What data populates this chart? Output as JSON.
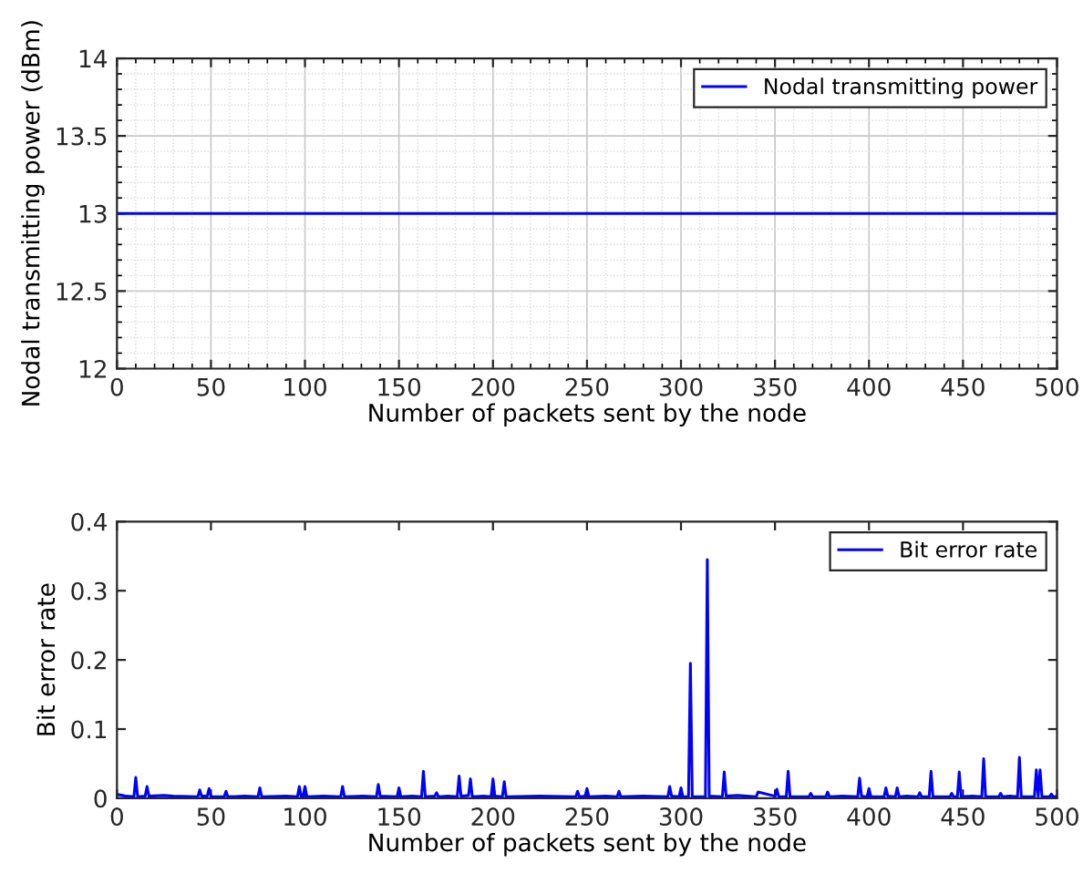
{
  "chart_data": [
    {
      "type": "line",
      "xlabel": "Number of packets sent by the node",
      "ylabel": "Nodal transmitting power (dBm)",
      "xlim": [
        0,
        500
      ],
      "ylim": [
        12,
        14
      ],
      "xticks": [
        0,
        50,
        100,
        150,
        200,
        250,
        300,
        350,
        400,
        450,
        500
      ],
      "yticks": [
        12,
        12.5,
        13,
        13.5,
        14
      ],
      "grid": true,
      "legend": "top right",
      "series": [
        {
          "name": "Nodal transmitting power",
          "color": "#0000ff",
          "x": [
            1,
            500
          ],
          "values": [
            13,
            13
          ]
        }
      ]
    },
    {
      "type": "line",
      "xlabel": "Number of packets sent by the node",
      "ylabel": "Bit error rate",
      "xlim": [
        0,
        500
      ],
      "ylim": [
        0,
        0.4
      ],
      "xticks": [
        0,
        50,
        100,
        150,
        200,
        250,
        300,
        350,
        400,
        450,
        500
      ],
      "yticks": [
        0,
        0.1,
        0.2,
        0.3,
        0.4
      ],
      "grid": false,
      "legend": "top right",
      "series": [
        {
          "name": "Bit error rate",
          "color": "#0000ff",
          "x": [
            1,
            3,
            5,
            9,
            10,
            11,
            15,
            16,
            17,
            25,
            30,
            43,
            44,
            45,
            48,
            49,
            50,
            57,
            58,
            59,
            68,
            75,
            76,
            77,
            90,
            96,
            97,
            98,
            99,
            100,
            101,
            110,
            119,
            120,
            121,
            131,
            138,
            139,
            140,
            149,
            150,
            151,
            157,
            162,
            163,
            164,
            169,
            170,
            171,
            176,
            181,
            182,
            183,
            187,
            188,
            189,
            195,
            199,
            200,
            201,
            205,
            206,
            207,
            225,
            244,
            245,
            246,
            249,
            250,
            251,
            260,
            266,
            267,
            268,
            280,
            293,
            294,
            295,
            299,
            300,
            301,
            304,
            305,
            306,
            313,
            314,
            315,
            322,
            323,
            324,
            330,
            340,
            341,
            350,
            351,
            352,
            356,
            357,
            358,
            368,
            369,
            370,
            377,
            378,
            379,
            386,
            394,
            395,
            396,
            399,
            400,
            401,
            408,
            409,
            410,
            414,
            415,
            416,
            420,
            426,
            427,
            428,
            432,
            433,
            434,
            443,
            444,
            445,
            447,
            448,
            449,
            455,
            460,
            461,
            462,
            469,
            470,
            471,
            475,
            479,
            480,
            481,
            488,
            489,
            490,
            491,
            492,
            496,
            497,
            498,
            500
          ],
          "values": [
            0.005,
            0.004,
            0.003,
            0.002,
            0.03,
            0.002,
            0.003,
            0.017,
            0.003,
            0.004,
            0.003,
            0.002,
            0.012,
            0.003,
            0.003,
            0.014,
            0.002,
            0.002,
            0.01,
            0.002,
            0.003,
            0.002,
            0.015,
            0.002,
            0.003,
            0.002,
            0.017,
            0.002,
            0.003,
            0.017,
            0.002,
            0.003,
            0.002,
            0.017,
            0.002,
            0.003,
            0.002,
            0.02,
            0.003,
            0.002,
            0.015,
            0.002,
            0.003,
            0.002,
            0.039,
            0.002,
            0.003,
            0.008,
            0.002,
            0.003,
            0.002,
            0.032,
            0.003,
            0.004,
            0.028,
            0.002,
            0.003,
            0.002,
            0.028,
            0.003,
            0.002,
            0.024,
            0.002,
            0.003,
            0.002,
            0.01,
            0.002,
            0.003,
            0.014,
            0.002,
            0.003,
            0.002,
            0.01,
            0.002,
            0.003,
            0.002,
            0.017,
            0.003,
            0.002,
            0.015,
            0.002,
            0.002,
            0.195,
            0.002,
            0.002,
            0.345,
            0.003,
            0.002,
            0.038,
            0.003,
            0.004,
            0.002,
            0.009,
            0.003,
            0.013,
            0.002,
            0.002,
            0.039,
            0.002,
            0.002,
            0.007,
            0.002,
            0.002,
            0.009,
            0.002,
            0.003,
            0.002,
            0.029,
            0.003,
            0.002,
            0.014,
            0.002,
            0.002,
            0.015,
            0.003,
            0.002,
            0.015,
            0.002,
            0.003,
            0.002,
            0.008,
            0.002,
            0.002,
            0.039,
            0.002,
            0.002,
            0.007,
            0.002,
            0.002,
            0.038,
            0.002,
            0.003,
            0.002,
            0.057,
            0.002,
            0.002,
            0.007,
            0.002,
            0.003,
            0.002,
            0.059,
            0.002,
            0.002,
            0.041,
            0.003,
            0.041,
            0.002,
            0.002,
            0.006,
            0.002,
            0.003
          ]
        }
      ]
    }
  ]
}
